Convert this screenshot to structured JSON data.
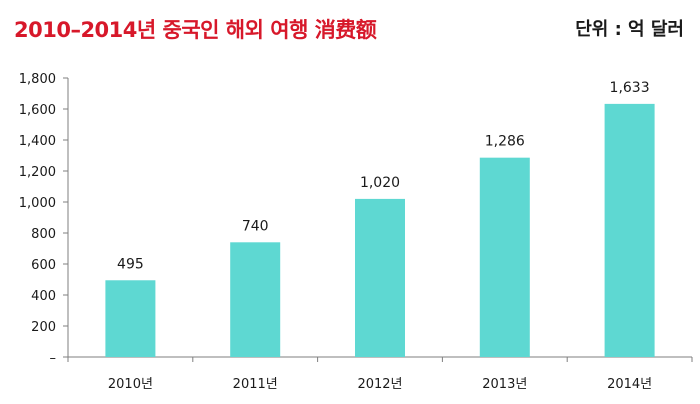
{
  "chart_data": {
    "type": "bar",
    "title": "2010–2014년 중국인 해외 여행 消费额",
    "unit": "단위 : 억 달러",
    "categories": [
      "2010년",
      "2011년",
      "2012년",
      "2013년",
      "2014년"
    ],
    "values": [
      495,
      740,
      1020,
      1286,
      1633
    ],
    "value_labels": [
      "495",
      "740",
      "1,020",
      "1,286",
      "1,633"
    ],
    "y_ticks": [
      0,
      200,
      400,
      600,
      800,
      1000,
      1200,
      1400,
      1600,
      1800
    ],
    "y_tick_labels": [
      "–",
      "200",
      "400",
      "600",
      "800",
      "1,000",
      "1,200",
      "1,400",
      "1,600",
      "1,800"
    ],
    "ylim": [
      0,
      1800
    ],
    "bar_color": "#5ed8d2",
    "title_color": "#d7182a",
    "grid": false,
    "legend": "none"
  }
}
